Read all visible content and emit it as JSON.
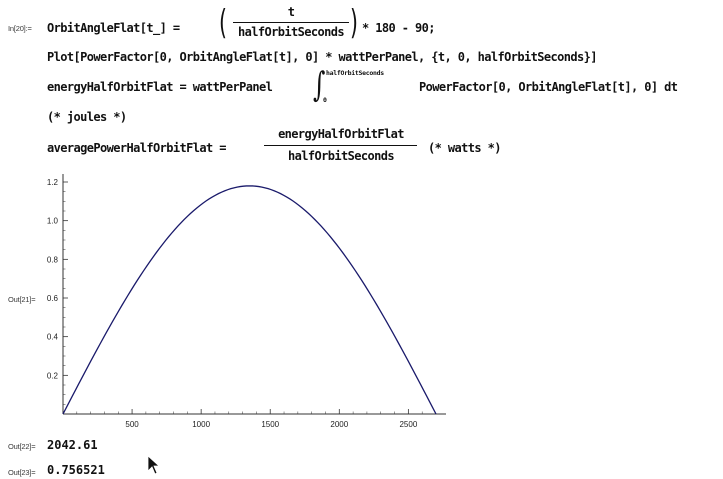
{
  "input_label": "In[20]:=",
  "lines": {
    "line1_prefix": "OrbitAngleFlat[t_] =",
    "line1_num": "t",
    "line1_den": "halfOrbitSeconds",
    "line1_suffix": "* 180 - 90;",
    "line2": "Plot[PowerFactor[0, OrbitAngleFlat[t], 0] * wattPerPanel, {t, 0, halfOrbitSeconds}]",
    "line3_prefix": "energyHalfOrbitFlat = wattPerPanel",
    "line3_upper": "halfOrbitSeconds",
    "line3_lower": "0",
    "line3_suffix": "PowerFactor[0, OrbitAngleFlat[t], 0] dt",
    "line4": "(* joules *)",
    "line5_prefix": "averagePowerHalfOrbitFlat =",
    "line5_num": "energyHalfOrbitFlat",
    "line5_den": "halfOrbitSeconds",
    "line5_suffix": "(* watts *)"
  },
  "outputs": {
    "out21_label": "Out[21]=",
    "out22_label": "Out[22]=",
    "out22_value": "2042.61",
    "out23_label": "Out[23]=",
    "out23_value": "0.756521"
  },
  "chart_data": {
    "type": "line",
    "title": "",
    "xlabel": "",
    "ylabel": "",
    "xlim": [
      0,
      2700
    ],
    "ylim": [
      0,
      1.2
    ],
    "x_ticks": [
      500,
      1000,
      1500,
      2000,
      2500
    ],
    "y_ticks": [
      0.2,
      0.4,
      0.6,
      0.8,
      1.0,
      1.2
    ],
    "x_tick_labels": [
      "500",
      "1000",
      "1500",
      "2000",
      "2500"
    ],
    "y_tick_labels": [
      "0.2",
      "0.4",
      "0.6",
      "0.8",
      "1.0",
      "1.2"
    ],
    "grid": false,
    "series": [
      {
        "color": "#1a1a6b",
        "x": [
          0,
          135,
          270,
          405,
          540,
          675,
          810,
          945,
          1080,
          1215,
          1350,
          1485,
          1620,
          1755,
          1890,
          2025,
          2160,
          2295,
          2430,
          2565,
          2700
        ],
        "y": [
          0.0,
          0.185,
          0.365,
          0.536,
          0.694,
          0.834,
          0.954,
          1.051,
          1.122,
          1.166,
          1.18,
          1.166,
          1.122,
          1.051,
          0.954,
          0.834,
          0.694,
          0.536,
          0.365,
          0.185,
          0.0
        ]
      }
    ]
  }
}
